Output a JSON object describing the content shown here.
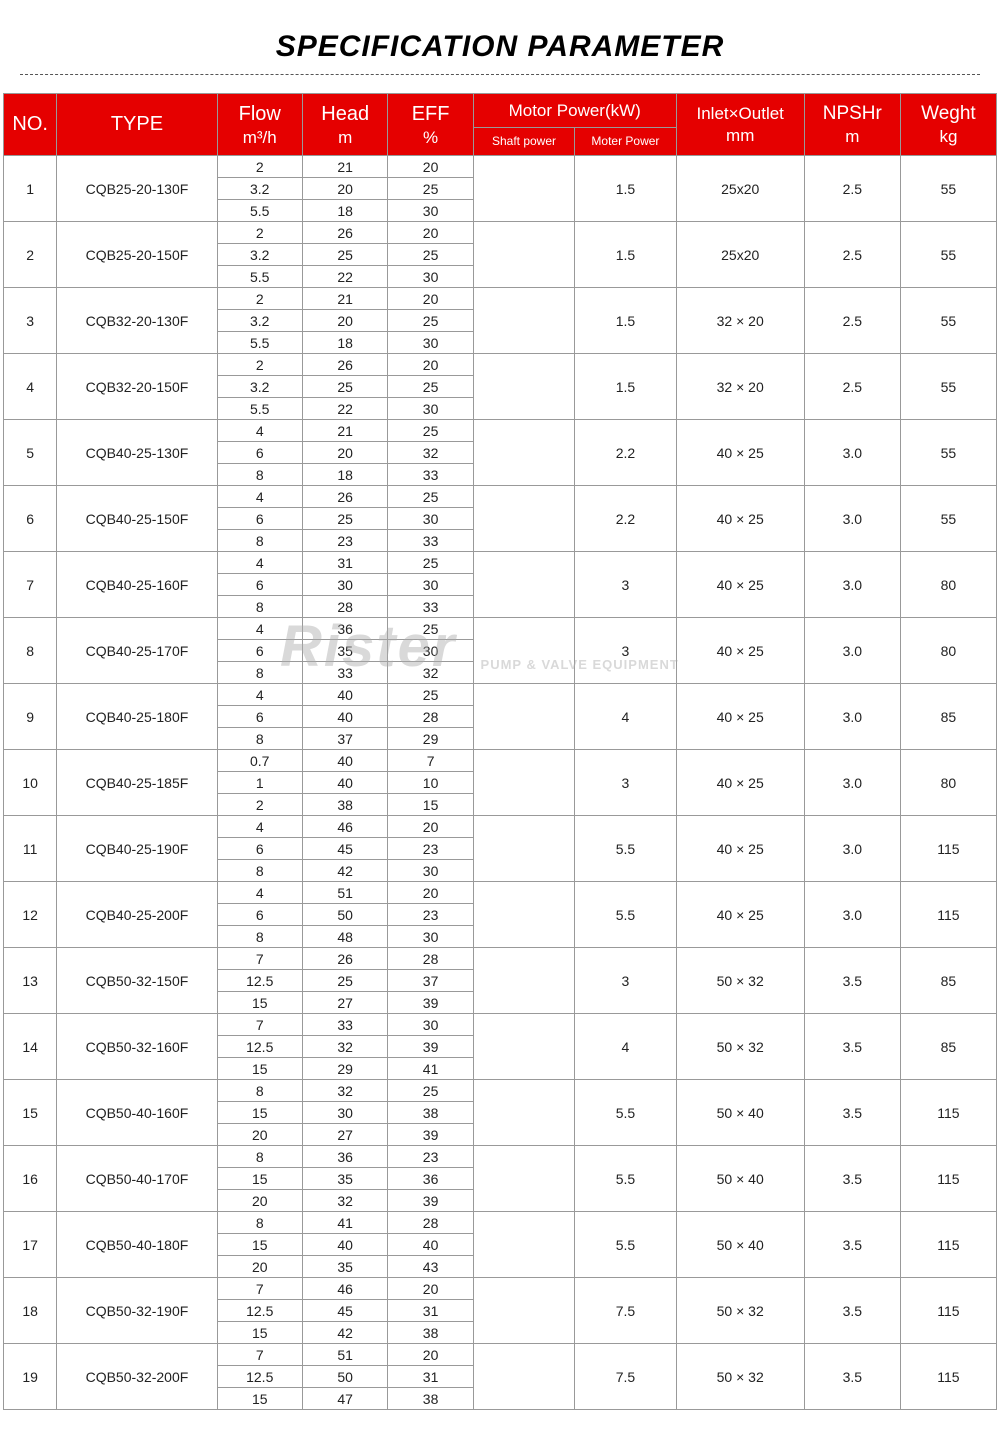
{
  "title": "SPECIFICATION PARAMETER",
  "watermark": {
    "main": "Rister",
    "sub": "PUMP & VALVE EQUIPMENT"
  },
  "colors": {
    "header_bg": "#e50000",
    "header_fg": "#ffffff",
    "border": "#999999",
    "text": "#222222"
  },
  "header": {
    "no": "NO.",
    "type": "TYPE",
    "flow": "Flow",
    "flow_unit": "m³/h",
    "head": "Head",
    "head_unit": "m",
    "eff": "EFF",
    "eff_unit": "%",
    "motor_power": "Motor Power(kW)",
    "shaft_power": "Shaft power",
    "moter_power": "Moter Power",
    "inout": "Inlet×Outlet",
    "inout_unit": "mm",
    "npshr": "NPSHr",
    "npshr_unit": "m",
    "weight": "Weght",
    "weight_unit": "kg"
  },
  "rows": [
    {
      "no": "1",
      "type": "CQB25-20-130F",
      "sub": [
        [
          "2",
          "21",
          "20"
        ],
        [
          "3.2",
          "20",
          "25"
        ],
        [
          "5.5",
          "18",
          "30"
        ]
      ],
      "shaft": "",
      "mpow": "1.5",
      "inout": "25x20",
      "npshr": "2.5",
      "wt": "55"
    },
    {
      "no": "2",
      "type": "CQB25-20-150F",
      "sub": [
        [
          "2",
          "26",
          "20"
        ],
        [
          "3.2",
          "25",
          "25"
        ],
        [
          "5.5",
          "22",
          "30"
        ]
      ],
      "shaft": "",
      "mpow": "1.5",
      "inout": "25x20",
      "npshr": "2.5",
      "wt": "55"
    },
    {
      "no": "3",
      "type": "CQB32-20-130F",
      "sub": [
        [
          "2",
          "21",
          "20"
        ],
        [
          "3.2",
          "20",
          "25"
        ],
        [
          "5.5",
          "18",
          "30"
        ]
      ],
      "shaft": "",
      "mpow": "1.5",
      "inout": "32 × 20",
      "npshr": "2.5",
      "wt": "55"
    },
    {
      "no": "4",
      "type": "CQB32-20-150F",
      "sub": [
        [
          "2",
          "26",
          "20"
        ],
        [
          "3.2",
          "25",
          "25"
        ],
        [
          "5.5",
          "22",
          "30"
        ]
      ],
      "shaft": "",
      "mpow": "1.5",
      "inout": "32 × 20",
      "npshr": "2.5",
      "wt": "55"
    },
    {
      "no": "5",
      "type": "CQB40-25-130F",
      "sub": [
        [
          "4",
          "21",
          "25"
        ],
        [
          "6",
          "20",
          "32"
        ],
        [
          "8",
          "18",
          "33"
        ]
      ],
      "shaft": "",
      "mpow": "2.2",
      "inout": "40 × 25",
      "npshr": "3.0",
      "wt": "55"
    },
    {
      "no": "6",
      "type": "CQB40-25-150F",
      "sub": [
        [
          "4",
          "26",
          "25"
        ],
        [
          "6",
          "25",
          "30"
        ],
        [
          "8",
          "23",
          "33"
        ]
      ],
      "shaft": "",
      "mpow": "2.2",
      "inout": "40 × 25",
      "npshr": "3.0",
      "wt": "55"
    },
    {
      "no": "7",
      "type": "CQB40-25-160F",
      "sub": [
        [
          "4",
          "31",
          "25"
        ],
        [
          "6",
          "30",
          "30"
        ],
        [
          "8",
          "28",
          "33"
        ]
      ],
      "shaft": "",
      "mpow": "3",
      "inout": "40 × 25",
      "npshr": "3.0",
      "wt": "80"
    },
    {
      "no": "8",
      "type": "CQB40-25-170F",
      "sub": [
        [
          "4",
          "36",
          "25"
        ],
        [
          "6",
          "35",
          "30"
        ],
        [
          "8",
          "33",
          "32"
        ]
      ],
      "shaft": "",
      "mpow": "3",
      "inout": "40 × 25",
      "npshr": "3.0",
      "wt": "80"
    },
    {
      "no": "9",
      "type": "CQB40-25-180F",
      "sub": [
        [
          "4",
          "40",
          "25"
        ],
        [
          "6",
          "40",
          "28"
        ],
        [
          "8",
          "37",
          "29"
        ]
      ],
      "shaft": "",
      "mpow": "4",
      "inout": "40 × 25",
      "npshr": "3.0",
      "wt": "85"
    },
    {
      "no": "10",
      "type": "CQB40-25-185F",
      "sub": [
        [
          "0.7",
          "40",
          "7"
        ],
        [
          "1",
          "40",
          "10"
        ],
        [
          "2",
          "38",
          "15"
        ]
      ],
      "shaft": "",
      "mpow": "3",
      "inout": "40 × 25",
      "npshr": "3.0",
      "wt": "80"
    },
    {
      "no": "11",
      "type": "CQB40-25-190F",
      "sub": [
        [
          "4",
          "46",
          "20"
        ],
        [
          "6",
          "45",
          "23"
        ],
        [
          "8",
          "42",
          "30"
        ]
      ],
      "shaft": "",
      "mpow": "5.5",
      "inout": "40 × 25",
      "npshr": "3.0",
      "wt": "115"
    },
    {
      "no": "12",
      "type": "CQB40-25-200F",
      "sub": [
        [
          "4",
          "51",
          "20"
        ],
        [
          "6",
          "50",
          "23"
        ],
        [
          "8",
          "48",
          "30"
        ]
      ],
      "shaft": "",
      "mpow": "5.5",
      "inout": "40 × 25",
      "npshr": "3.0",
      "wt": "115"
    },
    {
      "no": "13",
      "type": "CQB50-32-150F",
      "sub": [
        [
          "7",
          "26",
          "28"
        ],
        [
          "12.5",
          "25",
          "37"
        ],
        [
          "15",
          "27",
          "39"
        ]
      ],
      "shaft": "",
      "mpow": "3",
      "inout": "50 × 32",
      "npshr": "3.5",
      "wt": "85"
    },
    {
      "no": "14",
      "type": "CQB50-32-160F",
      "sub": [
        [
          "7",
          "33",
          "30"
        ],
        [
          "12.5",
          "32",
          "39"
        ],
        [
          "15",
          "29",
          "41"
        ]
      ],
      "shaft": "",
      "mpow": "4",
      "inout": "50 × 32",
      "npshr": "3.5",
      "wt": "85"
    },
    {
      "no": "15",
      "type": "CQB50-40-160F",
      "sub": [
        [
          "8",
          "32",
          "25"
        ],
        [
          "15",
          "30",
          "38"
        ],
        [
          "20",
          "27",
          "39"
        ]
      ],
      "shaft": "",
      "mpow": "5.5",
      "inout": "50 × 40",
      "npshr": "3.5",
      "wt": "115"
    },
    {
      "no": "16",
      "type": "CQB50-40-170F",
      "sub": [
        [
          "8",
          "36",
          "23"
        ],
        [
          "15",
          "35",
          "36"
        ],
        [
          "20",
          "32",
          "39"
        ]
      ],
      "shaft": "",
      "mpow": "5.5",
      "inout": "50 × 40",
      "npshr": "3.5",
      "wt": "115"
    },
    {
      "no": "17",
      "type": "CQB50-40-180F",
      "sub": [
        [
          "8",
          "41",
          "28"
        ],
        [
          "15",
          "40",
          "40"
        ],
        [
          "20",
          "35",
          "43"
        ]
      ],
      "shaft": "",
      "mpow": "5.5",
      "inout": "50 × 40",
      "npshr": "3.5",
      "wt": "115"
    },
    {
      "no": "18",
      "type": "CQB50-32-190F",
      "sub": [
        [
          "7",
          "46",
          "20"
        ],
        [
          "12.5",
          "45",
          "31"
        ],
        [
          "15",
          "42",
          "38"
        ]
      ],
      "shaft": "",
      "mpow": "7.5",
      "inout": "50 × 32",
      "npshr": "3.5",
      "wt": "115"
    },
    {
      "no": "19",
      "type": "CQB50-32-200F",
      "sub": [
        [
          "7",
          "51",
          "20"
        ],
        [
          "12.5",
          "50",
          "31"
        ],
        [
          "15",
          "47",
          "38"
        ]
      ],
      "shaft": "",
      "mpow": "7.5",
      "inout": "50 × 32",
      "npshr": "3.5",
      "wt": "115"
    }
  ]
}
